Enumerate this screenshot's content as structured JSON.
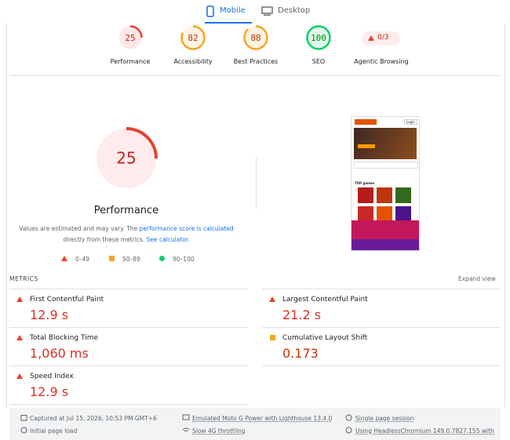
{
  "tabs": {
    "mobile": "Mobile",
    "desktop": "Desktop"
  },
  "scores": [
    {
      "label": "Performance",
      "value": 25,
      "color": "#e8412f"
    },
    {
      "label": "Accessibility",
      "value": 82,
      "color": "#f5a623"
    },
    {
      "label": "Best Practices",
      "value": 88,
      "color": "#f5a623"
    },
    {
      "label": "SEO",
      "value": 100,
      "color": "#0cce6b"
    }
  ],
  "agentic": {
    "label": "Agentic Browsing",
    "value": "0/3"
  },
  "main": {
    "score": 25,
    "color": "#e8412f",
    "label": "Performance",
    "note": {
      "text1": "Values are estimated and may vary. The",
      "link1": "performance score is calculated",
      "text2": "directly from these metrics.",
      "link2": "See calculator."
    },
    "legend": [
      "0–49",
      "50–89",
      "90–100"
    ]
  },
  "thumbnail": {
    "login": "Login",
    "section": "TOP games"
  },
  "metrics": {
    "title": "METRICS",
    "expand": "Expand view",
    "items": [
      {
        "name": "First Contentful Paint",
        "value": "12.9 s",
        "color": "#d93025"
      },
      {
        "name": "Largest Contentful Paint",
        "value": "21.2 s",
        "color": "#d93025"
      },
      {
        "name": "Total Blocking Time",
        "value": "1,060 ms",
        "color": "#d93025"
      },
      {
        "name": "Cumulative Layout Shift",
        "value": "0.173",
        "color": "#c33300"
      },
      {
        "name": "Speed Index",
        "value": "12.9 s",
        "color": "#d93025"
      }
    ]
  },
  "footer": {
    "captured": "Captured at Jul 15, 2026, 10:53 PM GMT+6",
    "load": "Initial page load",
    "device": "Emulated Moto G Power with Lighthouse 13.4.0",
    "throttle": "Slow 4G throttling",
    "session": "Single page session",
    "browser": "Using HeadlessChromium 149.0.7827.155 with lr"
  }
}
